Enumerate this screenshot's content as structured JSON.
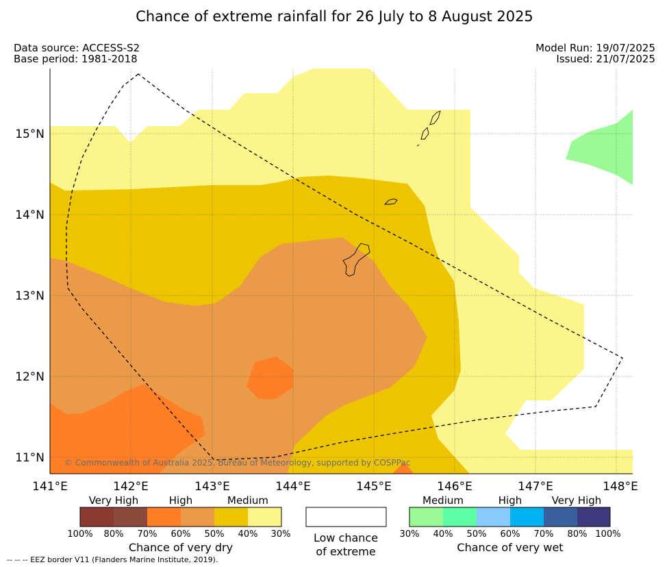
{
  "title": "Chance of extreme rainfall for 26 July to 8 August 2025",
  "meta": {
    "data_source": "Data source: ACCESS-S2",
    "base_period": "Base period: 1981-2018",
    "model_run": "Model Run: 19/07/2025",
    "issued": "Issued: 21/07/2025"
  },
  "map": {
    "lon_range": [
      141.0,
      148.2
    ],
    "lat_range": [
      10.8,
      15.8
    ],
    "x_ticks": [
      "141°E",
      "142°E",
      "143°E",
      "144°E",
      "145°E",
      "146°E",
      "147°E",
      "148°E"
    ],
    "y_ticks": [
      "15°N",
      "14°N",
      "13°N",
      "12°N",
      "11°N"
    ],
    "copyright": "© Commonwealth of Australia 2025, Bureau of Meteorology, supported by COSPPac",
    "colors": {
      "dry_very_high_1": "#8b3a30",
      "dry_very_high_2": "#8b4a3c",
      "dry_high_1": "#ff7f27",
      "dry_high_2": "#eb9a48",
      "dry_medium_1": "#ecc500",
      "dry_medium_2": "#fcf58a",
      "wet_medium_1": "#9afb96",
      "wet_medium_2": "#5bfca3",
      "wet_high_1": "#88ccfc",
      "wet_high_2": "#00b0ef",
      "wet_very_high_1": "#3a5f9f",
      "wet_very_high_2": "#3d3b7d",
      "low_chance": "#ffffff"
    }
  },
  "legend": {
    "dry": {
      "categories": [
        "Very High",
        "High",
        "Medium"
      ],
      "percents": [
        "100%",
        "80%",
        "70%",
        "60%",
        "50%",
        "40%",
        "30%"
      ],
      "caption": "Chance of very dry"
    },
    "low": {
      "caption_line1": "Low chance",
      "caption_line2": "of extreme"
    },
    "wet": {
      "categories": [
        "Medium",
        "High",
        "Very High"
      ],
      "percents": [
        "30%",
        "40%",
        "50%",
        "60%",
        "70%",
        "80%",
        "100%"
      ],
      "caption": "Chance of very wet"
    }
  },
  "footnote": "--  --  -- EEZ border V11 (Flanders Marine Institute, 2019)."
}
